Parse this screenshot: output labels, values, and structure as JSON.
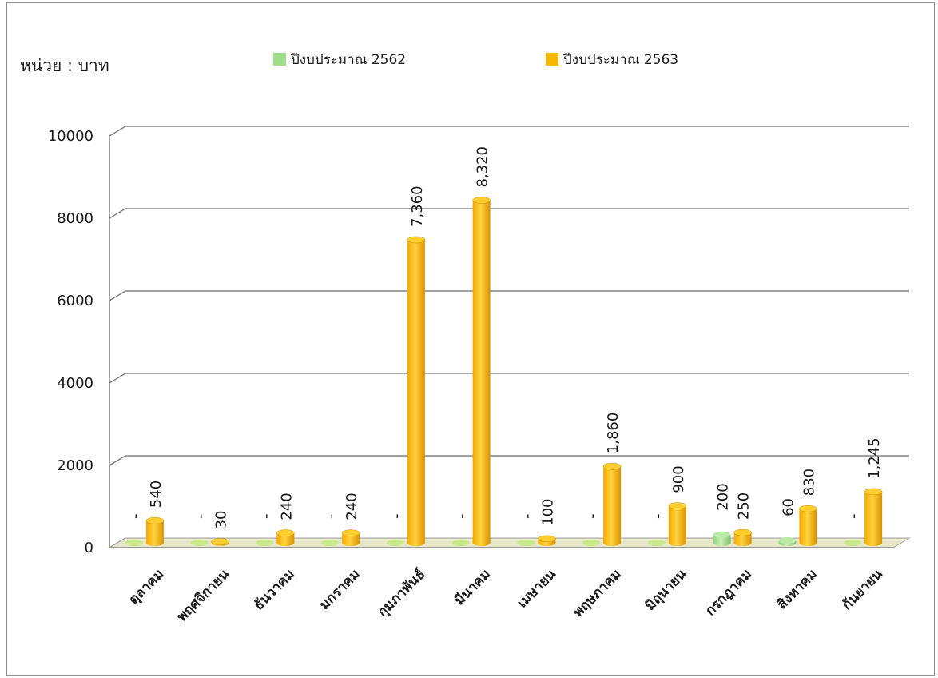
{
  "unit_label": "หน่วย : บาท",
  "colors": {
    "series_2562": "#9fdd8c",
    "series_2563": "#f7b600"
  },
  "chart_data": {
    "type": "bar",
    "title": "",
    "xlabel": "",
    "ylabel": "",
    "ylim": [
      0,
      10000
    ],
    "yticks": [
      "0",
      "2000",
      "4000",
      "6000",
      "8000",
      "10000"
    ],
    "grid": true,
    "legend": "top",
    "categories": [
      "ตุลาคม",
      "พฤศจิกายน",
      "ธันวาคม",
      "มกราคม",
      "กุมภาพันธ์",
      "มีนาคม",
      "เมษายน",
      "พฤษภาคม",
      "มิถุนายน",
      "กรกฎาคม",
      "สิงหาคม",
      "กันยายน"
    ],
    "series": [
      {
        "name": "ปีงบประมาณ 2562",
        "values": [
          0,
          0,
          0,
          0,
          0,
          0,
          0,
          0,
          0,
          200,
          60,
          0
        ],
        "labels": [
          "-",
          "-",
          "-",
          "-",
          "-",
          "-",
          "-",
          "-",
          "-",
          "200",
          "60",
          "-"
        ]
      },
      {
        "name": "ปีงบประมาณ 2563",
        "values": [
          540,
          30,
          240,
          240,
          7360,
          8320,
          100,
          1860,
          900,
          250,
          830,
          1245
        ],
        "labels": [
          "540",
          "30",
          "240",
          "240",
          "7,360",
          "8,320",
          "100",
          "1,860",
          "900",
          "250",
          "830",
          "1,245"
        ]
      }
    ]
  }
}
